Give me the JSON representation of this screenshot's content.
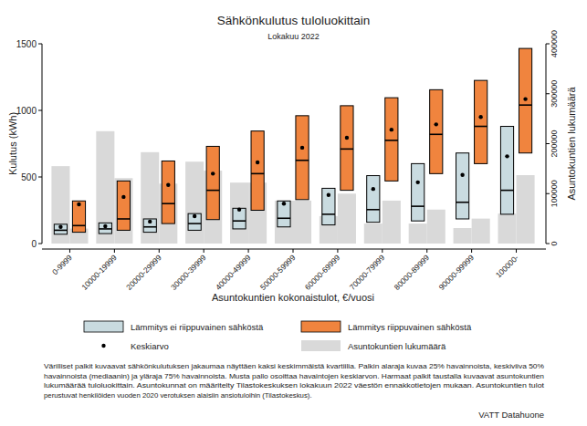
{
  "chart_data": {
    "type": "box",
    "title": "Sähkönkulutus tuloluokittain",
    "subtitle": "Lokakuu 2022",
    "x_label": "Asuntokuntien kokonaistulot, €/vuosi",
    "y_label": "Kulutus (kWh)",
    "y2_label": "Asuntokuntien lukumäärä",
    "categories": [
      "0-9999",
      "10000-19999",
      "20000-29999",
      "30000-39999",
      "40000-49999",
      "50000-59999",
      "60000-69999",
      "70000-79999",
      "80000-89999",
      "90000-99999",
      "100000-"
    ],
    "ylim": [
      0,
      1500
    ],
    "yticks": [
      0,
      500,
      1000,
      1500
    ],
    "y2lim": [
      0,
      400000
    ],
    "y2ticks": [
      0,
      100000,
      200000,
      300000,
      400000
    ],
    "series": [
      {
        "name": "Lämmitys ei riippuvainen sähköstä",
        "color": "#c9dbe0",
        "q1": [
          70,
          75,
          85,
          100,
          110,
          125,
          140,
          160,
          170,
          185,
          220
        ],
        "median": [
          100,
          110,
          125,
          150,
          170,
          190,
          220,
          255,
          280,
          310,
          400
        ],
        "q3": [
          145,
          155,
          185,
          225,
          265,
          320,
          415,
          510,
          600,
          680,
          880
        ],
        "mean": [
          125,
          130,
          165,
          205,
          255,
          300,
          365,
          410,
          460,
          515,
          655
        ],
        "households": [
          155000,
          225000,
          183000,
          164000,
          122000,
          86000,
          55000,
          40000,
          40000,
          31000,
          60000
        ]
      },
      {
        "name": "Lämmitys riippuvainen sähköstä",
        "color": "#f0843e",
        "q1": [
          85,
          100,
          150,
          180,
          250,
          330,
          400,
          470,
          525,
          600,
          680
        ],
        "median": [
          135,
          185,
          300,
          400,
          525,
          625,
          710,
          775,
          820,
          880,
          1040
        ],
        "q3": [
          320,
          470,
          620,
          730,
          845,
          960,
          1035,
          1095,
          1155,
          1225,
          1465
        ],
        "mean": [
          295,
          350,
          440,
          525,
          610,
          720,
          795,
          855,
          895,
          950,
          1085
        ],
        "households": [
          30000,
          131000,
          120000,
          146000,
          122000,
          86000,
          100000,
          86000,
          68000,
          50000,
          137000
        ]
      }
    ],
    "mean_legend": "Keskiarvo",
    "households_legend": {
      "name": "Asuntokuntien lukumäärä",
      "color": "#d9d9d9"
    },
    "note": [
      "Värilliset palkit kuvaavat sähkönkulutuksen jakaumaa näyttäen kaksi keskimmäistä kvartiilia. Palkin alaraja kuvaa 25% havainnoista, keskiviiva 50%",
      "havainnoista (mediaanin) ja yläraja 75% havainnoista. Musta pallo osoittaa havaintojen keskiarvon. Harmaat palkit taustalla kuvaavat asuntokuntien",
      "lukumäärää tuloluokittain. Asuntokunnat on määritelty Tilastokeskuksen lokakuun 2022 väestön ennakkotietojen mukaan. Asuntokuntien tulot",
      "perustuvat henkilöiden vuoden 2020 verotuksen alaisiin ansiotuloihin (Tilastokeskus)."
    ],
    "source": "VATT Datahuone"
  }
}
